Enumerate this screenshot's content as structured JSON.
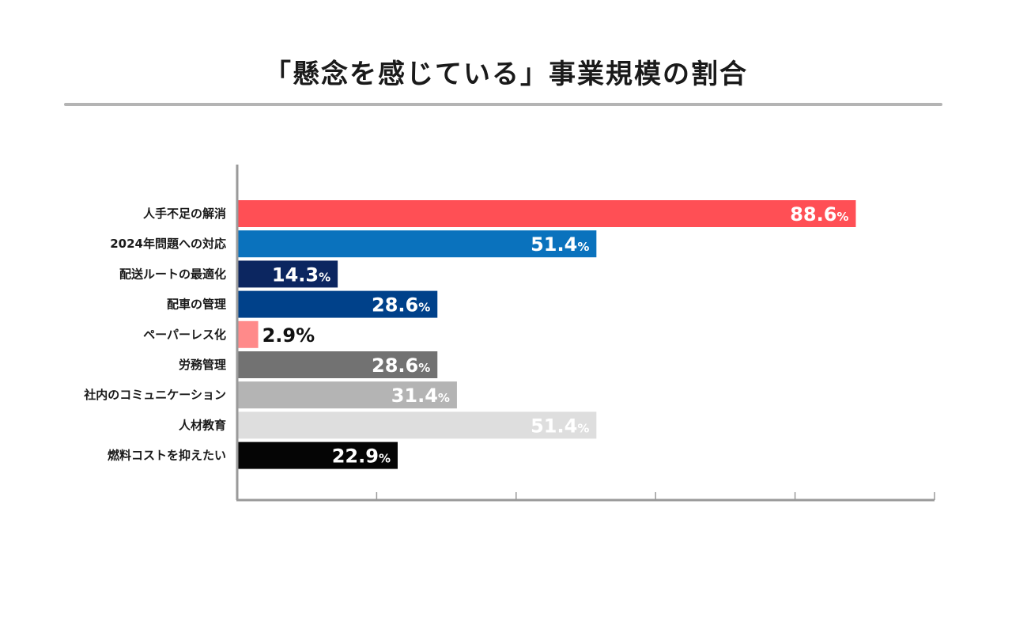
{
  "title": "「懸念を感じている」事業規模の割合",
  "chart_data": {
    "type": "bar",
    "orientation": "horizontal",
    "title": "「懸念を感じている」事業規模の割合",
    "xlim": [
      0,
      100
    ],
    "grid": false,
    "categories": [
      "人手不足の解消",
      "2024年問題への対応",
      "配送ルートの最適化",
      "配車の管理",
      "ペーパーレス化",
      "労務管理",
      "社内のコミュニケーション",
      "人材教育",
      "燃料コストを抑えたい"
    ],
    "values": [
      88.6,
      51.4,
      14.3,
      28.6,
      2.9,
      28.6,
      31.4,
      51.4,
      22.9
    ],
    "value_labels": [
      "88.6",
      "51.4",
      "14.3",
      "28.6",
      "2.9",
      "28.6",
      "31.4",
      "51.4",
      "22.9"
    ],
    "unit": "%",
    "colors": [
      "#ff4f55",
      "#0a72bd",
      "#0c2660",
      "#00418a",
      "#ff8a8a",
      "#727272",
      "#b4b4b4",
      "#dedede",
      "#050505"
    ],
    "label_colors": [
      "#ffffff",
      "#ffffff",
      "#ffffff",
      "#ffffff",
      "#111111",
      "#ffffff",
      "#ffffff",
      "#ffffff",
      "#ffffff"
    ],
    "label_outside": [
      false,
      false,
      false,
      false,
      true,
      false,
      false,
      false,
      false
    ]
  }
}
